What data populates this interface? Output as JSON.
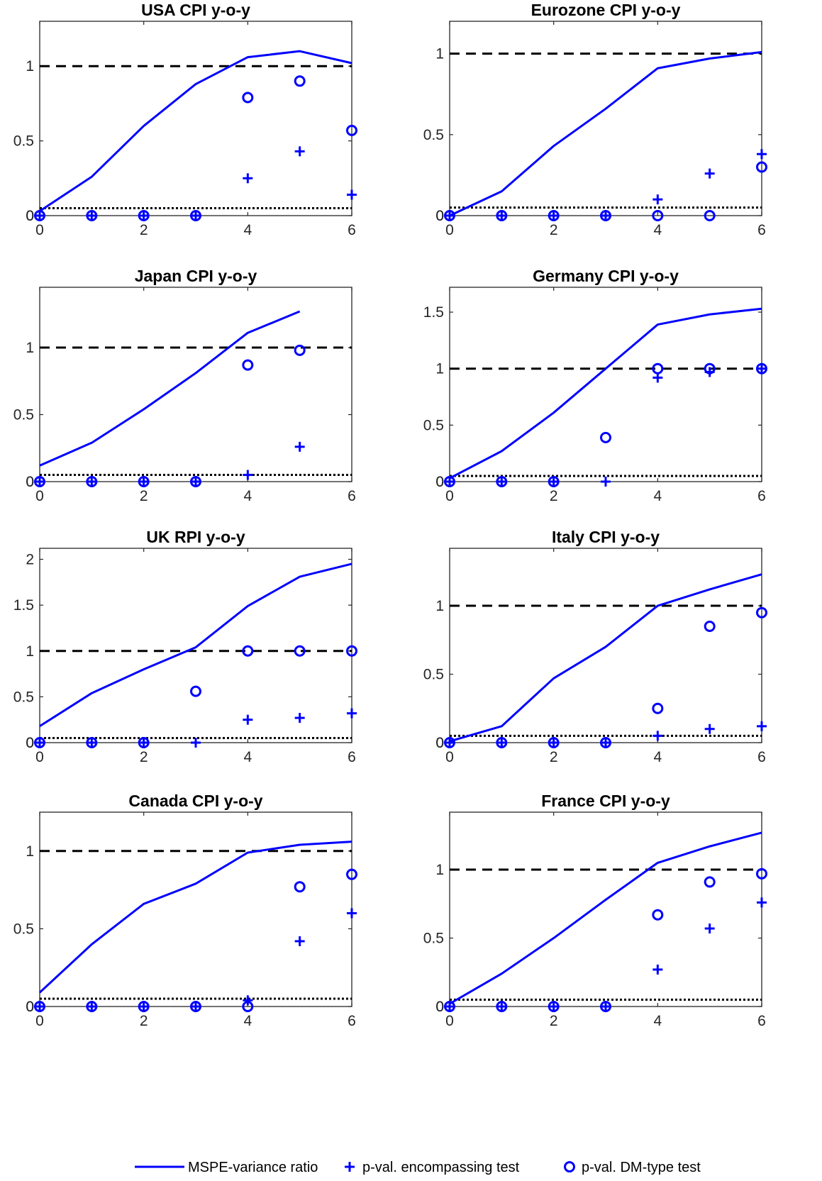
{
  "figure": {
    "legend": {
      "line_label": "MSPE-variance ratio",
      "plus_label": "p-val. encompassing test",
      "circle_label": "p-val. DM-type test"
    }
  },
  "colors": {
    "series": "#0000ff",
    "reference": "#000000",
    "axes": "#262626"
  },
  "chart_data": [
    {
      "type": "line",
      "title": "USA CPI y-o-y",
      "x": [
        0,
        1,
        2,
        3,
        4,
        5,
        6
      ],
      "xlim": [
        0,
        6
      ],
      "ylim": [
        0,
        1.3
      ],
      "xticks": [
        0,
        2,
        4,
        6
      ],
      "yticks": [
        0,
        0.5,
        1
      ],
      "dashed_reference": 1,
      "dotted_reference": 0.05,
      "series": [
        {
          "name": "MSPE-variance ratio",
          "type": "line",
          "values": [
            0.03,
            0.26,
            0.6,
            0.88,
            1.06,
            1.1,
            1.02
          ]
        },
        {
          "name": "p-val. encompassing test",
          "type": "scatter",
          "marker": "plus",
          "values": [
            0,
            0,
            0,
            0,
            0.25,
            0.43,
            0.14
          ]
        },
        {
          "name": "p-val. DM-type test",
          "type": "scatter",
          "marker": "circle",
          "values": [
            0,
            0,
            0,
            0,
            0.79,
            0.9,
            0.57
          ]
        }
      ]
    },
    {
      "type": "line",
      "title": "Eurozone CPI y-o-y",
      "x": [
        0,
        1,
        2,
        3,
        4,
        5,
        6
      ],
      "xlim": [
        0,
        6
      ],
      "ylim": [
        0,
        1.2
      ],
      "xticks": [
        0,
        2,
        4,
        6
      ],
      "yticks": [
        0,
        0.5,
        1
      ],
      "dashed_reference": 1,
      "dotted_reference": 0.05,
      "series": [
        {
          "name": "MSPE-variance ratio",
          "type": "line",
          "values": [
            0.0,
            0.15,
            0.43,
            0.66,
            0.91,
            0.97,
            1.01
          ]
        },
        {
          "name": "p-val. encompassing test",
          "type": "scatter",
          "marker": "plus",
          "values": [
            0,
            0,
            0,
            0,
            0.1,
            0.26,
            0.38
          ]
        },
        {
          "name": "p-val. DM-type test",
          "type": "scatter",
          "marker": "circle",
          "values": [
            0,
            0,
            0,
            0,
            0,
            0,
            0.3
          ]
        }
      ]
    },
    {
      "type": "line",
      "title": "Japan CPI y-o-y",
      "x": [
        0,
        1,
        2,
        3,
        4,
        5,
        6
      ],
      "xlim": [
        0,
        6
      ],
      "ylim": [
        0,
        1.45
      ],
      "xticks": [
        0,
        2,
        4,
        6
      ],
      "yticks": [
        0,
        0.5,
        1
      ],
      "dashed_reference": 1,
      "dotted_reference": 0.05,
      "series": [
        {
          "name": "MSPE-variance ratio",
          "type": "line",
          "values": [
            0.12,
            0.29,
            0.54,
            0.81,
            1.11,
            1.27,
            null
          ]
        },
        {
          "name": "p-val. encompassing test",
          "type": "scatter",
          "marker": "plus",
          "values": [
            0,
            0,
            0,
            0,
            0.05,
            0.26,
            null
          ]
        },
        {
          "name": "p-val. DM-type test",
          "type": "scatter",
          "marker": "circle",
          "values": [
            0,
            0,
            0,
            0,
            0.87,
            0.98,
            null
          ]
        }
      ]
    },
    {
      "type": "line",
      "title": "Germany CPI y-o-y",
      "x": [
        0,
        1,
        2,
        3,
        4,
        5,
        6
      ],
      "xlim": [
        0,
        6
      ],
      "ylim": [
        0,
        1.72
      ],
      "xticks": [
        0,
        2,
        4,
        6
      ],
      "yticks": [
        0,
        0.5,
        1,
        1.5
      ],
      "dashed_reference": 1,
      "dotted_reference": 0.05,
      "series": [
        {
          "name": "MSPE-variance ratio",
          "type": "line",
          "values": [
            0.03,
            0.27,
            0.61,
            1.0,
            1.39,
            1.48,
            1.53
          ]
        },
        {
          "name": "p-val. encompassing test",
          "type": "scatter",
          "marker": "plus",
          "values": [
            0,
            0,
            0,
            0,
            0.92,
            0.97,
            1.0
          ]
        },
        {
          "name": "p-val. DM-type test",
          "type": "scatter",
          "marker": "circle",
          "values": [
            0,
            0,
            0,
            0.39,
            1.0,
            1.0,
            1.0
          ]
        }
      ]
    },
    {
      "type": "line",
      "title": "UK RPI y-o-y",
      "x": [
        0,
        1,
        2,
        3,
        4,
        5,
        6
      ],
      "xlim": [
        0,
        6
      ],
      "ylim": [
        0,
        2.12
      ],
      "xticks": [
        0,
        2,
        4,
        6
      ],
      "yticks": [
        0,
        0.5,
        1,
        1.5,
        2
      ],
      "dashed_reference": 1,
      "dotted_reference": 0.05,
      "series": [
        {
          "name": "MSPE-variance ratio",
          "type": "line",
          "values": [
            0.18,
            0.54,
            0.8,
            1.04,
            1.49,
            1.81,
            1.95
          ]
        },
        {
          "name": "p-val. encompassing test",
          "type": "scatter",
          "marker": "plus",
          "values": [
            0,
            0,
            0,
            0,
            0.25,
            0.27,
            0.32
          ]
        },
        {
          "name": "p-val. DM-type test",
          "type": "scatter",
          "marker": "circle",
          "values": [
            0,
            0,
            0,
            0.56,
            1.0,
            1.0,
            1.0
          ]
        }
      ]
    },
    {
      "type": "line",
      "title": "Italy CPI y-o-y",
      "x": [
        0,
        1,
        2,
        3,
        4,
        5,
        6
      ],
      "xlim": [
        0,
        6
      ],
      "ylim": [
        0,
        1.42
      ],
      "xticks": [
        0,
        2,
        4,
        6
      ],
      "yticks": [
        0,
        0.5,
        1
      ],
      "dashed_reference": 1,
      "dotted_reference": 0.05,
      "series": [
        {
          "name": "MSPE-variance ratio",
          "type": "line",
          "values": [
            0.01,
            0.12,
            0.47,
            0.7,
            1.0,
            1.12,
            1.23
          ]
        },
        {
          "name": "p-val. encompassing test",
          "type": "scatter",
          "marker": "plus",
          "values": [
            0,
            0,
            0,
            0,
            0.05,
            0.1,
            0.12
          ]
        },
        {
          "name": "p-val. DM-type test",
          "type": "scatter",
          "marker": "circle",
          "values": [
            0,
            0,
            0,
            0,
            0.25,
            0.85,
            0.95
          ]
        }
      ]
    },
    {
      "type": "line",
      "title": "Canada CPI y-o-y",
      "x": [
        0,
        1,
        2,
        3,
        4,
        5,
        6
      ],
      "xlim": [
        0,
        6
      ],
      "ylim": [
        0,
        1.25
      ],
      "xticks": [
        0,
        2,
        4,
        6
      ],
      "yticks": [
        0,
        0.5,
        1
      ],
      "dashed_reference": 1,
      "dotted_reference": 0.05,
      "series": [
        {
          "name": "MSPE-variance ratio",
          "type": "line",
          "values": [
            0.09,
            0.4,
            0.66,
            0.79,
            0.99,
            1.04,
            1.06
          ]
        },
        {
          "name": "p-val. encompassing test",
          "type": "scatter",
          "marker": "plus",
          "values": [
            0,
            0,
            0,
            0,
            0.04,
            0.42,
            0.6
          ]
        },
        {
          "name": "p-val. DM-type test",
          "type": "scatter",
          "marker": "circle",
          "values": [
            0,
            0,
            0,
            0,
            0,
            0.77,
            0.85
          ]
        }
      ]
    },
    {
      "type": "line",
      "title": "France CPI y-o-y",
      "x": [
        0,
        1,
        2,
        3,
        4,
        5,
        6
      ],
      "xlim": [
        0,
        6
      ],
      "ylim": [
        0,
        1.42
      ],
      "xticks": [
        0,
        2,
        4,
        6
      ],
      "yticks": [
        0,
        0.5,
        1
      ],
      "dashed_reference": 1,
      "dotted_reference": 0.05,
      "series": [
        {
          "name": "MSPE-variance ratio",
          "type": "line",
          "values": [
            0.02,
            0.24,
            0.5,
            0.78,
            1.05,
            1.17,
            1.27
          ]
        },
        {
          "name": "p-val. encompassing test",
          "type": "scatter",
          "marker": "plus",
          "values": [
            0,
            0,
            0,
            0,
            0.27,
            0.57,
            0.76
          ]
        },
        {
          "name": "p-val. DM-type test",
          "type": "scatter",
          "marker": "circle",
          "values": [
            0,
            0,
            0,
            0,
            0.67,
            0.91,
            0.97
          ]
        }
      ]
    }
  ]
}
